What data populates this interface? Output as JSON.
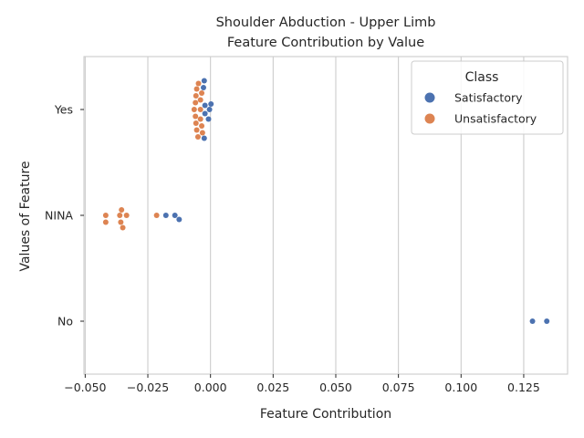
{
  "chart_data": {
    "type": "scatter",
    "title_lines": [
      "Shoulder Abduction - Upper Limb",
      "Feature Contribution by Value"
    ],
    "xlabel": "Feature Contribution",
    "ylabel": "Values of Feature",
    "xlim": [
      -0.0505,
      0.1425
    ],
    "x_ticks": [
      -0.05,
      -0.025,
      0.0,
      0.025,
      0.05,
      0.075,
      0.1,
      0.125
    ],
    "x_tick_labels": [
      "−0.050",
      "−0.025",
      "0.000",
      "0.025",
      "0.050",
      "0.075",
      "0.100",
      "0.125"
    ],
    "categories": [
      "Yes",
      "NINA",
      "No"
    ],
    "grid": true,
    "legend": {
      "title": "Class",
      "placement": "top-right"
    },
    "series": [
      {
        "name": "Satisfactory",
        "color": "#4c72b0",
        "points": [
          {
            "category": "Yes",
            "x": -0.0004
          },
          {
            "category": "Yes",
            "x": -0.0022
          },
          {
            "category": "Yes",
            "x": -0.0025
          },
          {
            "category": "Yes",
            "x": 0.0002
          },
          {
            "category": "Yes",
            "x": -0.0008
          },
          {
            "category": "Yes",
            "x": -0.0028
          },
          {
            "category": "Yes",
            "x": -0.0025
          },
          {
            "category": "Yes",
            "x": -0.0022
          },
          {
            "category": "NINA",
            "x": -0.0125
          },
          {
            "category": "NINA",
            "x": -0.0178
          },
          {
            "category": "NINA",
            "x": -0.0142
          },
          {
            "category": "No",
            "x": 0.1285
          },
          {
            "category": "No",
            "x": 0.1342
          }
        ]
      },
      {
        "name": "Unsatisfactory",
        "color": "#dd8452",
        "points": [
          {
            "category": "Yes",
            "x": -0.0032
          },
          {
            "category": "Yes",
            "x": -0.0035
          },
          {
            "category": "Yes",
            "x": -0.004
          },
          {
            "category": "Yes",
            "x": -0.0048
          },
          {
            "category": "Yes",
            "x": -0.0055
          },
          {
            "category": "Yes",
            "x": -0.0058
          },
          {
            "category": "Yes",
            "x": -0.006
          },
          {
            "category": "Yes",
            "x": -0.0035
          },
          {
            "category": "Yes",
            "x": -0.0065
          },
          {
            "category": "Yes",
            "x": -0.006
          },
          {
            "category": "Yes",
            "x": -0.0058
          },
          {
            "category": "Yes",
            "x": -0.0055
          },
          {
            "category": "Yes",
            "x": -0.005
          },
          {
            "category": "Yes",
            "x": -0.004
          },
          {
            "category": "Yes",
            "x": -0.004
          },
          {
            "category": "NINA",
            "x": -0.0418
          },
          {
            "category": "NINA",
            "x": -0.0418
          },
          {
            "category": "NINA",
            "x": -0.0358
          },
          {
            "category": "NINA",
            "x": -0.0362
          },
          {
            "category": "NINA",
            "x": -0.0335
          },
          {
            "category": "NINA",
            "x": -0.0355
          },
          {
            "category": "NINA",
            "x": -0.035
          },
          {
            "category": "NINA",
            "x": -0.0215
          }
        ]
      }
    ]
  }
}
